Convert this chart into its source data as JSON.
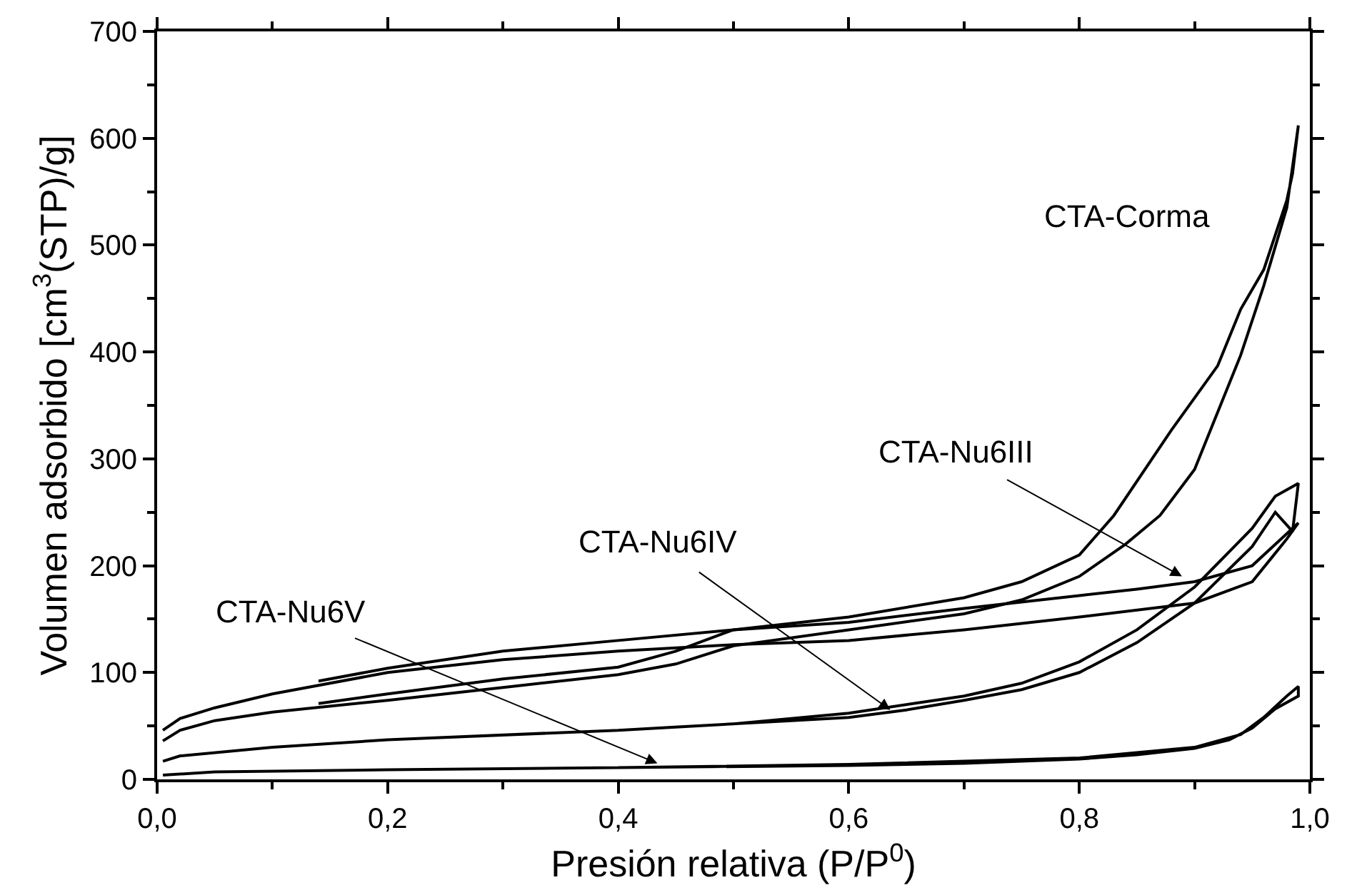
{
  "chart_data": {
    "type": "line",
    "xlabel": "Presión relativa (P/P$^{0}$)",
    "ylabel": "Volumen adsorbido [cm$^{3}$(STP)/g]",
    "xlim": [
      0,
      1
    ],
    "ylim": [
      0,
      700
    ],
    "xticks": [
      {
        "value": 0,
        "label": "0,0"
      },
      {
        "value": 0.1,
        "label": null
      },
      {
        "value": 0.2,
        "label": "0,2"
      },
      {
        "value": 0.3,
        "label": null
      },
      {
        "value": 0.4,
        "label": "0,4"
      },
      {
        "value": 0.5,
        "label": null
      },
      {
        "value": 0.6,
        "label": "0,6"
      },
      {
        "value": 0.7,
        "label": null
      },
      {
        "value": 0.8,
        "label": "0,8"
      },
      {
        "value": 0.9,
        "label": null
      },
      {
        "value": 1,
        "label": "1,0"
      }
    ],
    "yticks": [
      0,
      {
        "value": 50,
        "label": null
      },
      100,
      {
        "value": 150,
        "label": null
      },
      200,
      {
        "value": 250,
        "label": null
      },
      300,
      {
        "value": 350,
        "label": null
      },
      400,
      {
        "value": 450,
        "label": null
      },
      500,
      {
        "value": 550,
        "label": null
      },
      600,
      {
        "value": 650,
        "label": null
      },
      700
    ],
    "marker": "none",
    "line_style": "solid",
    "series": [
      {
        "color": "#000000",
        "x": [
          0.005,
          0.02,
          0.05,
          0.1,
          0.2,
          0.3,
          0.4,
          0.45,
          0.5,
          0.6,
          0.7,
          0.75,
          0.8,
          0.84,
          0.87,
          0.9,
          0.94,
          0.96,
          0.98,
          0.99,
          0.985,
          0.98,
          0.96,
          0.94,
          0.92,
          0.88,
          0.83,
          0.8,
          0.75,
          0.7,
          0.6,
          0.5,
          0.45,
          0.4,
          0.3,
          0.2,
          0.14
        ],
        "values": [
          36,
          46,
          55,
          63,
          74,
          86,
          98,
          108,
          125,
          140,
          155,
          168,
          190,
          220,
          247,
          290,
          397,
          462,
          535,
          612,
          567,
          542,
          477,
          440,
          387,
          327,
          247,
          210,
          185,
          170,
          152,
          140,
          120,
          105,
          94,
          80,
          71
        ]
      },
      {
        "color": "#000000",
        "x": [
          0.005,
          0.02,
          0.05,
          0.1,
          0.2,
          0.3,
          0.4,
          0.5,
          0.6,
          0.7,
          0.8,
          0.9,
          0.95,
          0.98,
          0.99,
          0.98,
          0.95,
          0.9,
          0.85,
          0.8,
          0.7,
          0.6,
          0.5,
          0.4,
          0.3,
          0.2,
          0.14
        ],
        "values": [
          46,
          57,
          67,
          80,
          100,
          112,
          120,
          126,
          130,
          140,
          152,
          165,
          185,
          225,
          240,
          230,
          200,
          185,
          178,
          172,
          160,
          147,
          140,
          130,
          120,
          104,
          92
        ]
      },
      {
        "color": "#000000",
        "x": [
          0.005,
          0.02,
          0.1,
          0.2,
          0.4,
          0.55,
          0.6,
          0.65,
          0.7,
          0.75,
          0.8,
          0.85,
          0.9,
          0.95,
          0.97,
          0.985,
          0.99,
          0.97,
          0.95,
          0.9,
          0.85,
          0.8,
          0.75,
          0.7,
          0.6,
          0.5,
          0.4
        ],
        "values": [
          17,
          22,
          30,
          37,
          46,
          55,
          58,
          65,
          74,
          84,
          100,
          128,
          165,
          218,
          250,
          232,
          277,
          265,
          235,
          180,
          140,
          110,
          90,
          78,
          62,
          52,
          46
        ]
      },
      {
        "color": "#000000",
        "x": [
          0.005,
          0.05,
          0.2,
          0.4,
          0.6,
          0.7,
          0.8,
          0.85,
          0.9,
          0.93,
          0.95,
          0.97,
          0.99,
          0.99,
          0.98,
          0.96,
          0.94,
          0.9,
          0.8,
          0.6,
          0.4
        ],
        "values": [
          4,
          7,
          9,
          11,
          13,
          15,
          19,
          23,
          29,
          37,
          48,
          66,
          78,
          87,
          78,
          58,
          42,
          30,
          20,
          14,
          11
        ]
      }
    ],
    "annotations": [
      "CTA-Corma",
      {
        "text": "CTA-Nu6III",
        "x": 0.889,
        "y": 190
      },
      {
        "text": "CTA-Nu6IV",
        "x": 0.636,
        "y": 65
      },
      {
        "text": "CTA-Nu6V",
        "x": 0.434,
        "y": 15
      }
    ]
  }
}
